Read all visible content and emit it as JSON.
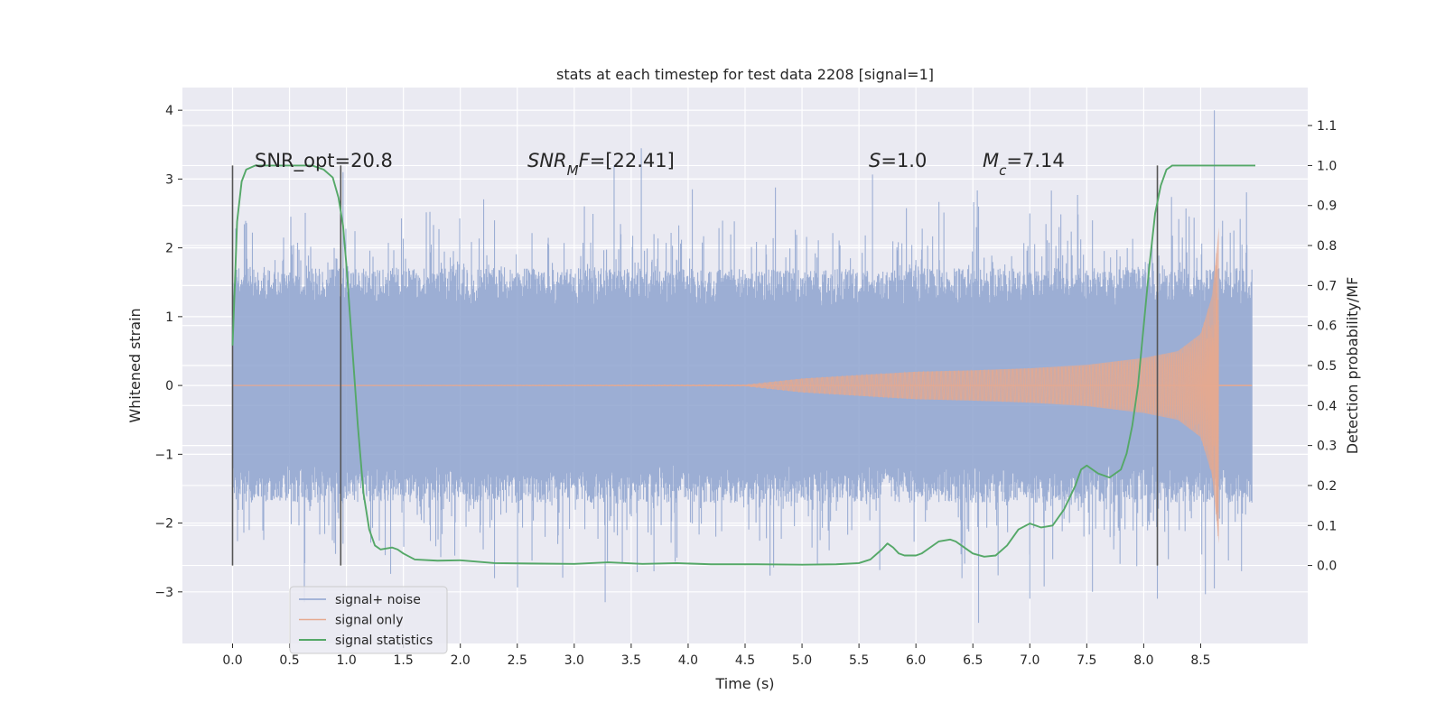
{
  "chart_data": {
    "type": "line",
    "title": "stats at each timestep for test data 2208 [signal=1]",
    "xlabel": "Time (s)",
    "ylabel_left": "Whitened strain",
    "ylabel_right": "Detection probability/MF",
    "xlim": [
      -0.44,
      9.44
    ],
    "ylim_left": [
      -3.75,
      4.33
    ],
    "ylim_right": [
      -0.195,
      1.195
    ],
    "x_ticks": [
      0.0,
      0.5,
      1.0,
      1.5,
      2.0,
      2.5,
      3.0,
      3.5,
      4.0,
      4.5,
      5.0,
      5.5,
      6.0,
      6.5,
      7.0,
      7.5,
      8.0,
      8.5
    ],
    "x_tick_labels": [
      "0.0",
      "0.5",
      "1.0",
      "1.5",
      "2.0",
      "2.5",
      "3.0",
      "3.5",
      "4.0",
      "4.5",
      "5.0",
      "5.5",
      "6.0",
      "6.5",
      "7.0",
      "7.5",
      "8.0",
      "8.5"
    ],
    "y_left_ticks": [
      -3,
      -2,
      -1,
      0,
      1,
      2,
      3,
      4
    ],
    "y_left_tick_labels": [
      "−3",
      "−2",
      "−1",
      "0",
      "1",
      "2",
      "3",
      "4"
    ],
    "y_right_ticks": [
      0.0,
      0.1,
      0.2,
      0.3,
      0.4,
      0.5,
      0.6,
      0.7,
      0.8,
      0.9,
      1.0,
      1.1
    ],
    "y_right_tick_labels": [
      "0.0",
      "0.1",
      "0.2",
      "0.3",
      "0.4",
      "0.5",
      "0.6",
      "0.7",
      "0.8",
      "0.9",
      "1.0",
      "1.1"
    ],
    "grid": true,
    "legend_position": "lower-left",
    "colors": {
      "background": "#eaeaf2",
      "grid": "#ffffff",
      "noise": "#8ea3cf",
      "signal": "#e6a98f",
      "stats": "#55a868",
      "vline": "#555555"
    },
    "annotations": {
      "snr_opt": "SNR_opt=20.8",
      "snr_mf": "SNR_MF=[22.41]",
      "s": "S=1.0",
      "mc": "M_c=7.14"
    },
    "vertical_lines_x": [
      0.0,
      0.95,
      8.12
    ],
    "series": [
      {
        "name": "signal+ noise",
        "kind": "noise",
        "x_range": [
          0.0,
          8.95
        ],
        "typical_envelope": 1.55,
        "max": 4.0,
        "min": -3.45
      },
      {
        "name": "signal only",
        "kind": "chirp",
        "x_range": [
          0.0,
          8.95
        ],
        "merger_time": 8.66,
        "envelope_x": [
          0.0,
          4.5,
          5.0,
          5.5,
          6.0,
          6.5,
          7.0,
          7.5,
          8.0,
          8.3,
          8.5,
          8.6,
          8.66
        ],
        "envelope_amp": [
          0.0,
          0.01,
          0.1,
          0.15,
          0.2,
          0.22,
          0.25,
          0.3,
          0.4,
          0.5,
          0.75,
          1.3,
          2.3
        ]
      },
      {
        "name": "signal statistics",
        "kind": "line",
        "axis": "right",
        "x": [
          0.0,
          0.02,
          0.04,
          0.08,
          0.12,
          0.2,
          0.3,
          0.5,
          0.7,
          0.8,
          0.88,
          0.93,
          0.97,
          1.0,
          1.05,
          1.1,
          1.15,
          1.2,
          1.25,
          1.3,
          1.4,
          1.45,
          1.5,
          1.6,
          1.8,
          2.0,
          2.3,
          2.6,
          3.0,
          3.3,
          3.6,
          3.9,
          4.2,
          4.6,
          5.0,
          5.3,
          5.5,
          5.6,
          5.7,
          5.75,
          5.8,
          5.85,
          5.9,
          6.0,
          6.05,
          6.1,
          6.2,
          6.3,
          6.35,
          6.4,
          6.5,
          6.6,
          6.7,
          6.8,
          6.85,
          6.9,
          7.0,
          7.1,
          7.2,
          7.25,
          7.3,
          7.4,
          7.45,
          7.5,
          7.55,
          7.6,
          7.7,
          7.8,
          7.85,
          7.9,
          7.95,
          8.0,
          8.05,
          8.1,
          8.15,
          8.2,
          8.25,
          8.3,
          8.4,
          8.6,
          8.8,
          8.98
        ],
        "y": [
          0.55,
          0.7,
          0.86,
          0.96,
          0.99,
          1.0,
          1.0,
          1.0,
          1.0,
          0.99,
          0.97,
          0.92,
          0.85,
          0.75,
          0.55,
          0.35,
          0.18,
          0.09,
          0.05,
          0.04,
          0.045,
          0.04,
          0.03,
          0.015,
          0.012,
          0.013,
          0.006,
          0.005,
          0.004,
          0.008,
          0.004,
          0.006,
          0.003,
          0.003,
          0.002,
          0.003,
          0.006,
          0.015,
          0.04,
          0.055,
          0.045,
          0.03,
          0.025,
          0.025,
          0.03,
          0.04,
          0.06,
          0.065,
          0.06,
          0.05,
          0.03,
          0.022,
          0.025,
          0.05,
          0.07,
          0.09,
          0.105,
          0.095,
          0.1,
          0.12,
          0.14,
          0.2,
          0.24,
          0.25,
          0.24,
          0.23,
          0.22,
          0.24,
          0.28,
          0.35,
          0.45,
          0.6,
          0.75,
          0.88,
          0.95,
          0.99,
          1.0,
          1.0,
          1.0,
          1.0,
          1.0,
          1.0
        ]
      }
    ]
  }
}
